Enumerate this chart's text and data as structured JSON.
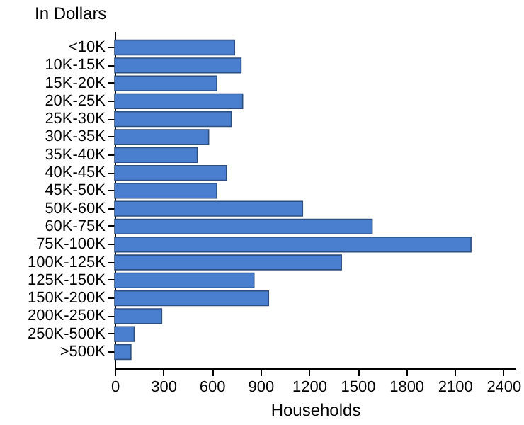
{
  "chart_data": {
    "type": "bar",
    "orientation": "horizontal",
    "categories": [
      "<10K",
      "10K-15K",
      "15K-20K",
      "20K-25K",
      "25K-30K",
      "30K-35K",
      "35K-40K",
      "40K-45K",
      "45K-50K",
      "50K-60K",
      "60K-75K",
      "75K-100K",
      "100K-125K",
      "125K-150K",
      "150K-200K",
      "200K-250K",
      "250K-500K",
      ">500K"
    ],
    "values": [
      740,
      780,
      630,
      790,
      720,
      580,
      510,
      690,
      630,
      1160,
      1590,
      2200,
      1400,
      860,
      950,
      290,
      120,
      100
    ],
    "color": "#4a7fd0",
    "ylabel": "In Dollars",
    "xlabel": "Households",
    "xlim": [
      0,
      2475
    ],
    "xticks": [
      0,
      300,
      600,
      900,
      1200,
      1500,
      1800,
      2100,
      2400
    ],
    "grid": false
  }
}
